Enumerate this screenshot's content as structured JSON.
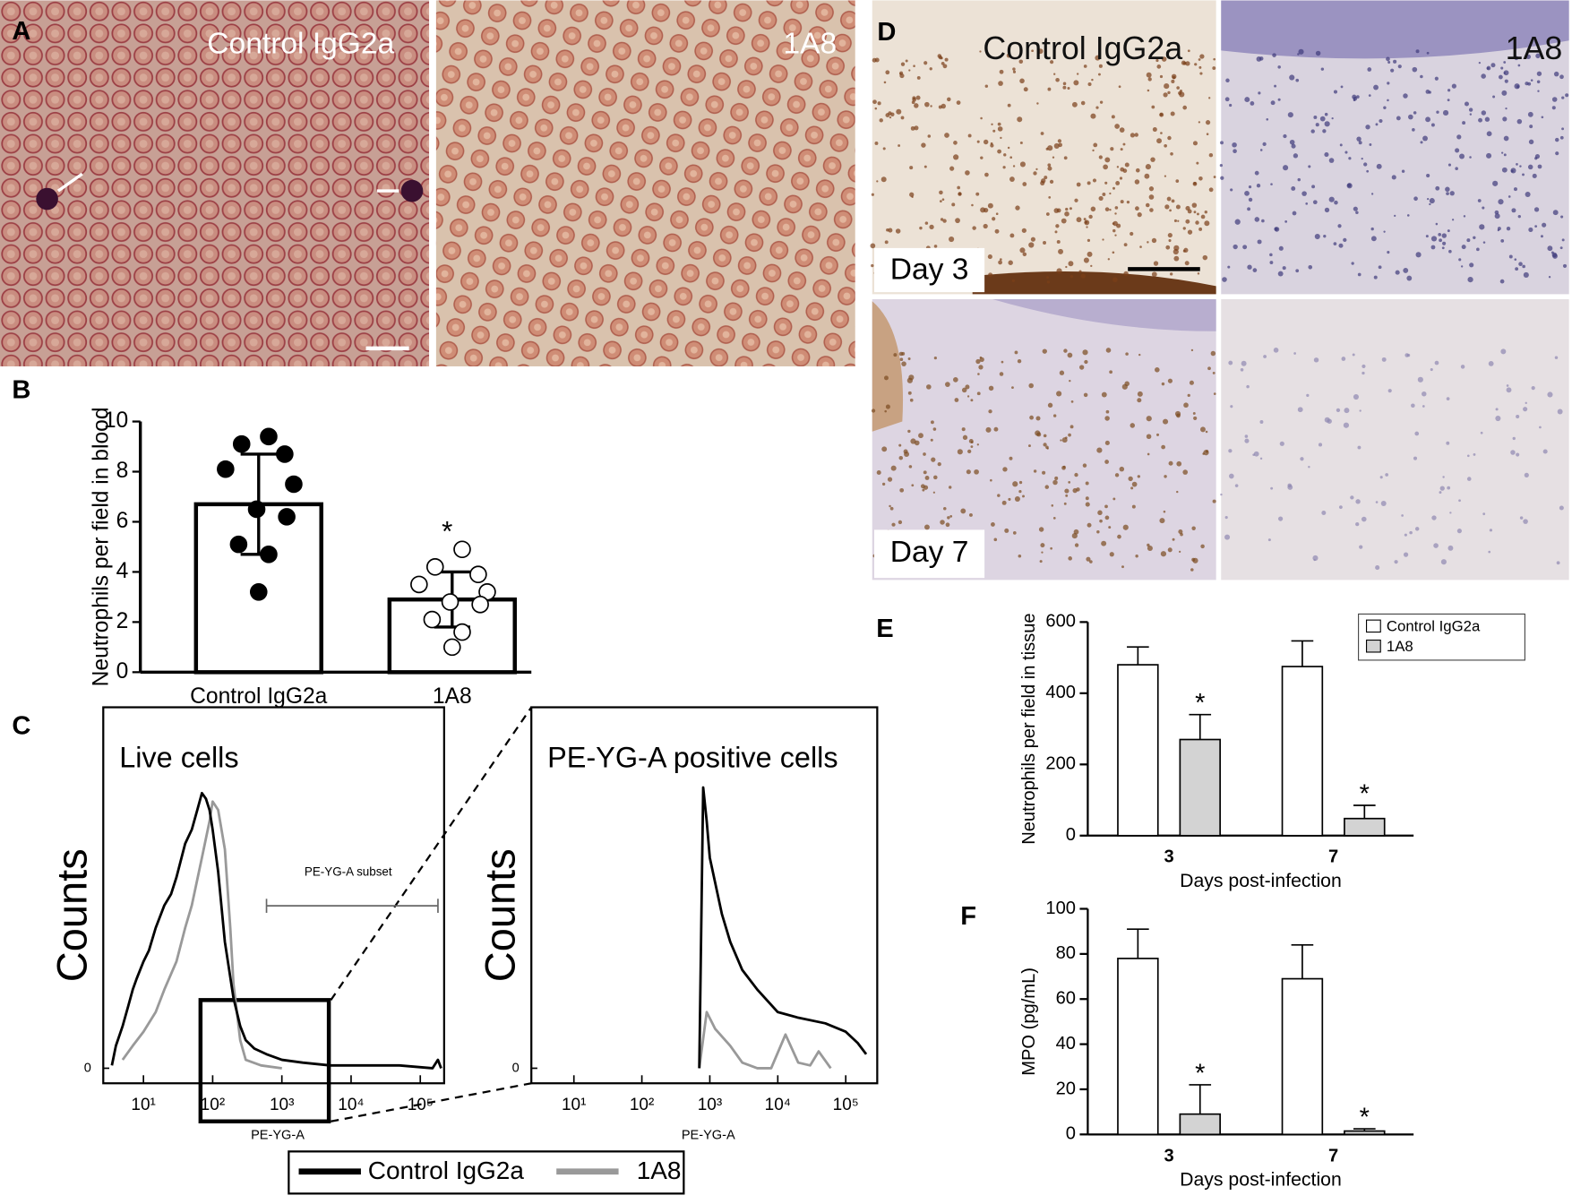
{
  "panels": {
    "labels": [
      "A",
      "B",
      "C",
      "D",
      "E",
      "F"
    ]
  },
  "micrographs": {
    "blood": {
      "left": "Control IgG2a",
      "right": "1A8"
    },
    "tissue": {
      "left": "Control IgG2a",
      "right": "1A8",
      "rows": [
        "Day 3",
        "Day 7"
      ]
    }
  },
  "chart_data": [
    {
      "type": "bar",
      "categories": [
        "Control IgG2a",
        "1A8"
      ],
      "values": [
        6.7,
        2.9
      ],
      "errors": [
        2.0,
        1.1
      ],
      "points": [
        [
          9.4,
          9.1,
          8.7,
          8.1,
          7.5,
          6.5,
          6.2,
          5.1,
          4.7,
          3.2
        ],
        [
          4.9,
          4.2,
          3.9,
          3.5,
          3.2,
          2.8,
          2.7,
          2.1,
          1.6,
          1.0
        ]
      ],
      "point_styles": [
        "filled",
        "open"
      ],
      "color": "#ffffff",
      "ylabel": "Neutrophils per field in blood",
      "ylim": [
        0,
        10
      ],
      "yticks": [
        0,
        2,
        4,
        6,
        8,
        10
      ],
      "annotations": [
        {
          "text": "*",
          "x": "1A8"
        }
      ]
    },
    {
      "type": "line",
      "title": "Live cells",
      "ylabel": "Counts",
      "xlabel": "PE-YG-A",
      "log_x": true,
      "xlim": [
        3,
        200000
      ],
      "xticks": [
        {
          "value": 10,
          "label": "10¹"
        },
        {
          "value": 100,
          "label": "10²"
        },
        {
          "value": 1000,
          "label": "10³"
        },
        {
          "value": 10000,
          "label": "10⁴"
        },
        {
          "value": 100000,
          "label": "10⁵"
        }
      ],
      "ylim": [
        0,
        125
      ],
      "yticks": [
        0
      ],
      "gate": {
        "label": "PE-YG-A subset",
        "range": [
          600,
          180000
        ]
      },
      "legend": "bottom",
      "series": [
        {
          "name": "Control IgG2a",
          "color": "#000000",
          "x": [
            3.5,
            4,
            5,
            6,
            7,
            8,
            10,
            12,
            15,
            20,
            25,
            30,
            40,
            50,
            60,
            70,
            80,
            90,
            100,
            120,
            150,
            200,
            250,
            300,
            400,
            600,
            1000,
            2000,
            5000,
            10000,
            50000,
            150000,
            180000,
            200000
          ],
          "values": [
            1,
            8,
            15,
            22,
            28,
            32,
            38,
            42,
            50,
            58,
            62,
            68,
            80,
            85,
            92,
            98,
            96,
            92,
            85,
            70,
            45,
            25,
            15,
            10,
            7,
            5,
            3,
            2,
            1,
            1,
            1,
            0,
            3,
            0
          ]
        },
        {
          "name": "1A8",
          "color": "#999999",
          "x": [
            5,
            7,
            10,
            15,
            20,
            30,
            40,
            50,
            70,
            90,
            100,
            120,
            150,
            180,
            200,
            250,
            300,
            500,
            1000
          ],
          "values": [
            3,
            8,
            13,
            20,
            28,
            38,
            50,
            58,
            75,
            88,
            95,
            92,
            78,
            50,
            30,
            10,
            3,
            1,
            0
          ]
        }
      ]
    },
    {
      "type": "line",
      "title": "PE-YG-A positive cells",
      "ylabel": "Counts",
      "xlabel": "PE-YG-A",
      "log_x": true,
      "xlim": [
        3,
        200000
      ],
      "xticks": [
        {
          "value": 10,
          "label": "10¹"
        },
        {
          "value": 100,
          "label": "10²"
        },
        {
          "value": 1000,
          "label": "10³"
        },
        {
          "value": 10000,
          "label": "10⁴"
        },
        {
          "value": 100000,
          "label": "10⁵"
        }
      ],
      "ylim": [
        0,
        125
      ],
      "yticks": [
        0
      ],
      "series": [
        {
          "color": "#000000",
          "x": [
            700,
            800,
            900,
            1000,
            1500,
            2000,
            3000,
            5000,
            10000,
            20000,
            50000,
            100000,
            150000,
            200000
          ],
          "values": [
            0,
            100,
            88,
            75,
            55,
            45,
            35,
            28,
            20,
            18,
            16,
            13,
            9,
            5
          ]
        },
        {
          "color": "#999999",
          "x": [
            700,
            900,
            1200,
            2000,
            3000,
            5000,
            8000,
            13000,
            20000,
            30000,
            40000,
            60000
          ],
          "values": [
            0,
            20,
            14,
            8,
            2,
            0,
            0,
            12,
            2,
            1,
            6,
            0
          ]
        }
      ]
    },
    {
      "type": "bar",
      "categories": [
        "3",
        "7"
      ],
      "xlabel": "Days post-infection",
      "ylabel": "Neutrophils per field in tissue",
      "ylim": [
        0,
        600
      ],
      "yticks": [
        0,
        200,
        400,
        600
      ],
      "legend": "upper right",
      "series": [
        {
          "name": "Control IgG2a",
          "color": "#ffffff",
          "values": [
            480,
            475
          ],
          "errors": [
            50,
            72
          ]
        },
        {
          "name": "1A8",
          "color": "#d3d3d3",
          "values": [
            270,
            48
          ],
          "errors": [
            70,
            37
          ]
        }
      ],
      "annotations": [
        {
          "text": "*",
          "series": "1A8",
          "x": "3"
        },
        {
          "text": "*",
          "series": "1A8",
          "x": "7"
        }
      ]
    },
    {
      "type": "bar",
      "categories": [
        "3",
        "7"
      ],
      "xlabel": "Days post-infection",
      "ylabel": "MPO (pg/mL)",
      "ylim": [
        0,
        100
      ],
      "yticks": [
        0,
        20,
        40,
        60,
        80,
        100
      ],
      "series": [
        {
          "color": "#ffffff",
          "values": [
            78,
            69
          ],
          "errors": [
            13,
            15
          ]
        },
        {
          "color": "#d3d3d3",
          "values": [
            9,
            1.5
          ],
          "errors": [
            13,
            1
          ]
        }
      ],
      "annotations": [
        {
          "text": "*",
          "series": 1,
          "x": "3"
        },
        {
          "text": "*",
          "series": 1,
          "x": "7"
        }
      ]
    }
  ]
}
